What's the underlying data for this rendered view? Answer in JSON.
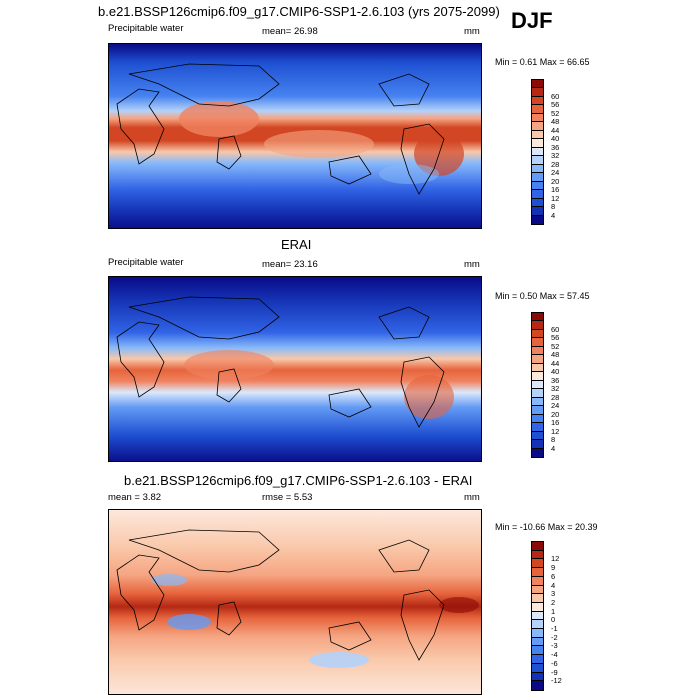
{
  "season": "DJF",
  "panels": [
    {
      "title": "b.e21.BSSP126cmip6.f09_g17.CMIP6-SSP1-2.6.103 (yrs 2075-2099)",
      "left_label": "Precipitable water",
      "center_label": "mean=  26.98",
      "unit": "mm",
      "minmax": "Min =   0.61 Max =  66.65",
      "colorbar": {
        "colors": [
          "#0a0a87",
          "#1432b4",
          "#1e50d2",
          "#3264e6",
          "#4682f0",
          "#649bf5",
          "#87b9fa",
          "#b4d2fa",
          "#dce8fa",
          "#fde8dc",
          "#f9c8aa",
          "#f5a582",
          "#f0825f",
          "#e6643c",
          "#d24623",
          "#b42814",
          "#8c0a05"
        ],
        "labels": [
          "4",
          "8",
          "12",
          "16",
          "20",
          "24",
          "28",
          "32",
          "36",
          "40",
          "44",
          "48",
          "52",
          "56",
          "60"
        ]
      }
    },
    {
      "title": "ERAI",
      "left_label": "Precipitable water",
      "center_label": "mean=  23.16",
      "unit": "mm",
      "minmax": "Min =   0.50 Max =  57.45",
      "colorbar": {
        "colors": [
          "#0a0a87",
          "#1432b4",
          "#1e50d2",
          "#3264e6",
          "#4682f0",
          "#649bf5",
          "#87b9fa",
          "#b4d2fa",
          "#dce8fa",
          "#fde8dc",
          "#f9c8aa",
          "#f5a582",
          "#f0825f",
          "#e6643c",
          "#d24623",
          "#b42814",
          "#8c0a05"
        ],
        "labels": [
          "4",
          "8",
          "12",
          "16",
          "20",
          "24",
          "28",
          "32",
          "36",
          "40",
          "44",
          "48",
          "52",
          "56",
          "60"
        ]
      }
    },
    {
      "title": "b.e21.BSSP126cmip6.f09_g17.CMIP6-SSP1-2.6.103 - ERAI",
      "left_label": "mean =   3.82",
      "center_label": "rmse =   5.53",
      "unit": "mm",
      "minmax": "Min = -10.66 Max =  20.39",
      "colorbar": {
        "colors": [
          "#0a0a87",
          "#1432b4",
          "#1e50d2",
          "#3264e6",
          "#4682f0",
          "#649bf5",
          "#87b9fa",
          "#b4d2fa",
          "#dce8fa",
          "#fde8dc",
          "#f9c8aa",
          "#f5a582",
          "#f0825f",
          "#e6643c",
          "#d24623",
          "#b42814",
          "#8c0a05"
        ],
        "labels": [
          "-12",
          "-9",
          "-6",
          "-4",
          "-3",
          "-2",
          "-1",
          "0",
          "1",
          "2",
          "3",
          "4",
          "6",
          "9",
          "12"
        ]
      }
    }
  ]
}
